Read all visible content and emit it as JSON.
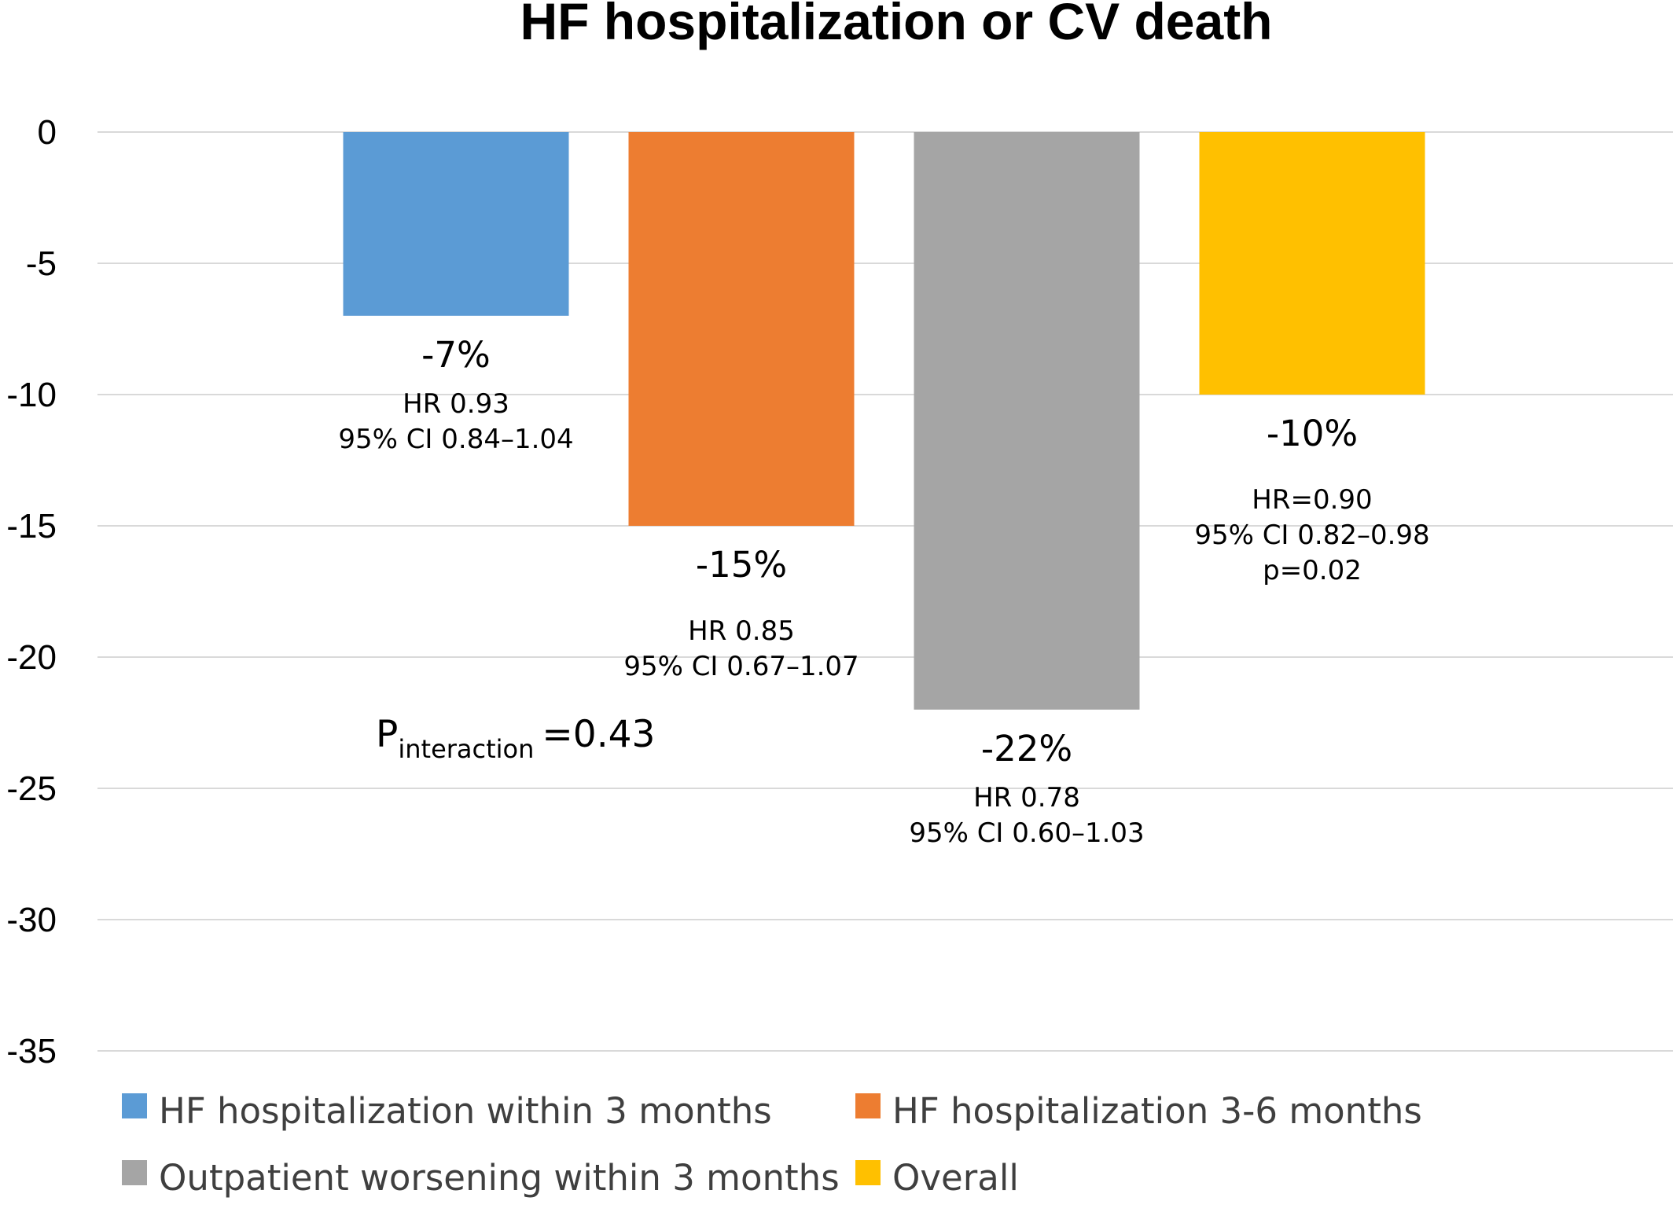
{
  "chart_data": {
    "type": "bar",
    "title": "HF hospitalization or CV death",
    "xlabel": "",
    "ylabel": "",
    "ylim": [
      -35,
      0
    ],
    "yticks": [
      0,
      -5,
      -10,
      -15,
      -20,
      -25,
      -30,
      -35
    ],
    "grid": true,
    "legend_position": "bottom",
    "series": [
      {
        "name": "HF hospitalization within 3 months",
        "value": -7,
        "color": "#5b9bd5",
        "label": "-7%",
        "annotations": [
          "HR 0.93",
          "95% CI 0.84–1.04"
        ]
      },
      {
        "name": "HF hospitalization 3-6 months",
        "value": -15,
        "color": "#ed7d31",
        "label": "-15%",
        "annotations": [
          "HR 0.85",
          "95% CI 0.67–1.07"
        ]
      },
      {
        "name": "Outpatient worsening within 3 months",
        "value": -22,
        "color": "#a5a5a5",
        "label": "-22%",
        "annotations": [
          "HR 0.78",
          "95% CI  0.60–1.03"
        ]
      },
      {
        "name": "Overall",
        "value": -10,
        "color": "#ffc000",
        "label": "-10%",
        "annotations": [
          "HR=0.90",
          "95% CI 0.82–0.98",
          "p=0.02"
        ]
      }
    ],
    "p_interaction": {
      "symbol": "P",
      "subscript": "interaction",
      "value": "=0.43"
    }
  }
}
